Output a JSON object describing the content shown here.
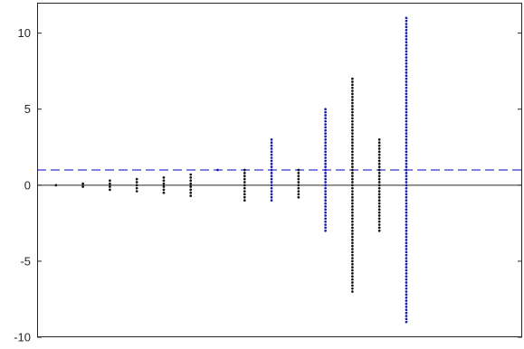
{
  "chart_data": {
    "type": "scatter",
    "title": "",
    "xlabel": "",
    "ylabel": "",
    "xlim": [
      0,
      18
    ],
    "ylim": [
      -10,
      12
    ],
    "y_ticks": [
      -10,
      -5,
      0,
      5,
      10
    ],
    "y_tick_labels": [
      "-10",
      "-5",
      "0",
      "5",
      "10"
    ],
    "x_ticks": [],
    "grid": false,
    "legend": "none",
    "reference_lines": [
      {
        "y": 0,
        "style": "solid",
        "color": "#262626"
      },
      {
        "y": 1,
        "style": "dashed",
        "color": "#0000cc"
      }
    ],
    "colors": {
      "black": "#111111",
      "blue": "#1a1aa8",
      "axis": "#262626"
    },
    "dot_spacing": 0.2,
    "columns": [
      {
        "x": 0.7,
        "y_min": 0,
        "y_max": 0,
        "color": "black"
      },
      {
        "x": 1.7,
        "y_min": -0.1,
        "y_max": 0.1,
        "color": "black"
      },
      {
        "x": 2.7,
        "y_min": -0.3,
        "y_max": 0.3,
        "color": "black"
      },
      {
        "x": 3.7,
        "y_min": -0.4,
        "y_max": 0.4,
        "color": "black"
      },
      {
        "x": 4.7,
        "y_min": -0.5,
        "y_max": 0.5,
        "color": "black"
      },
      {
        "x": 5.7,
        "y_min": -0.7,
        "y_max": 0.7,
        "color": "black"
      },
      {
        "x": 6.7,
        "y_min": 1,
        "y_max": 1,
        "color": "blue"
      },
      {
        "x": 7.7,
        "y_min": -1,
        "y_max": 1,
        "color": "black"
      },
      {
        "x": 8.7,
        "y_min": -1,
        "y_max": 3,
        "color": "blue"
      },
      {
        "x": 9.7,
        "y_min": -0.8,
        "y_max": 1,
        "color": "black"
      },
      {
        "x": 10.7,
        "y_min": -3,
        "y_max": 5,
        "color": "blue"
      },
      {
        "x": 11.7,
        "y_min": -7,
        "y_max": 7,
        "color": "black"
      },
      {
        "x": 12.7,
        "y_min": -3,
        "y_max": 3,
        "color": "black"
      },
      {
        "x": 13.7,
        "y_min": -9,
        "y_max": 11,
        "color": "blue"
      }
    ]
  }
}
